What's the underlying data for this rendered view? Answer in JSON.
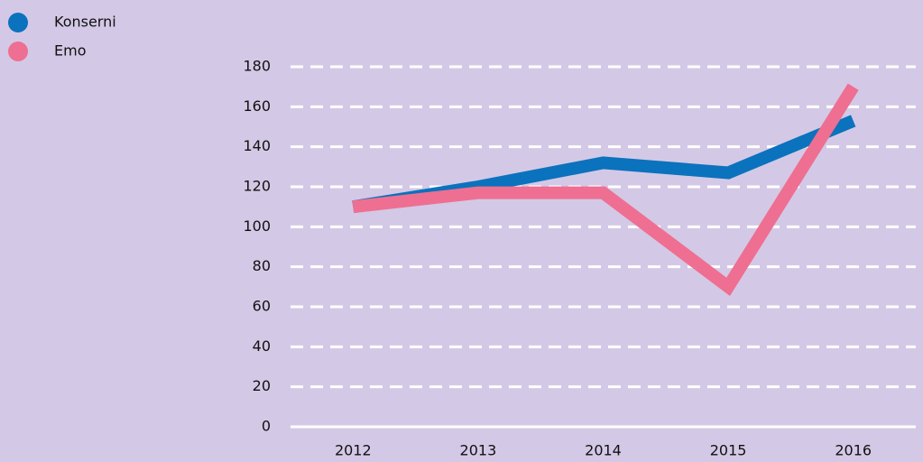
{
  "chart_data": {
    "type": "line",
    "categories": [
      "2012",
      "2013",
      "2014",
      "2015",
      "2016"
    ],
    "series": [
      {
        "name": "Konserni",
        "color": "#0b72bd",
        "values": [
          110,
          120,
          132,
          127,
          153
        ]
      },
      {
        "name": "Emo",
        "color": "#ee6f91",
        "values": [
          110,
          117,
          117,
          70,
          170
        ]
      }
    ],
    "ylim": [
      0,
      180
    ],
    "yticks": [
      0,
      20,
      40,
      60,
      80,
      100,
      120,
      140,
      160,
      180
    ],
    "grid": true,
    "legend": "top-left"
  }
}
